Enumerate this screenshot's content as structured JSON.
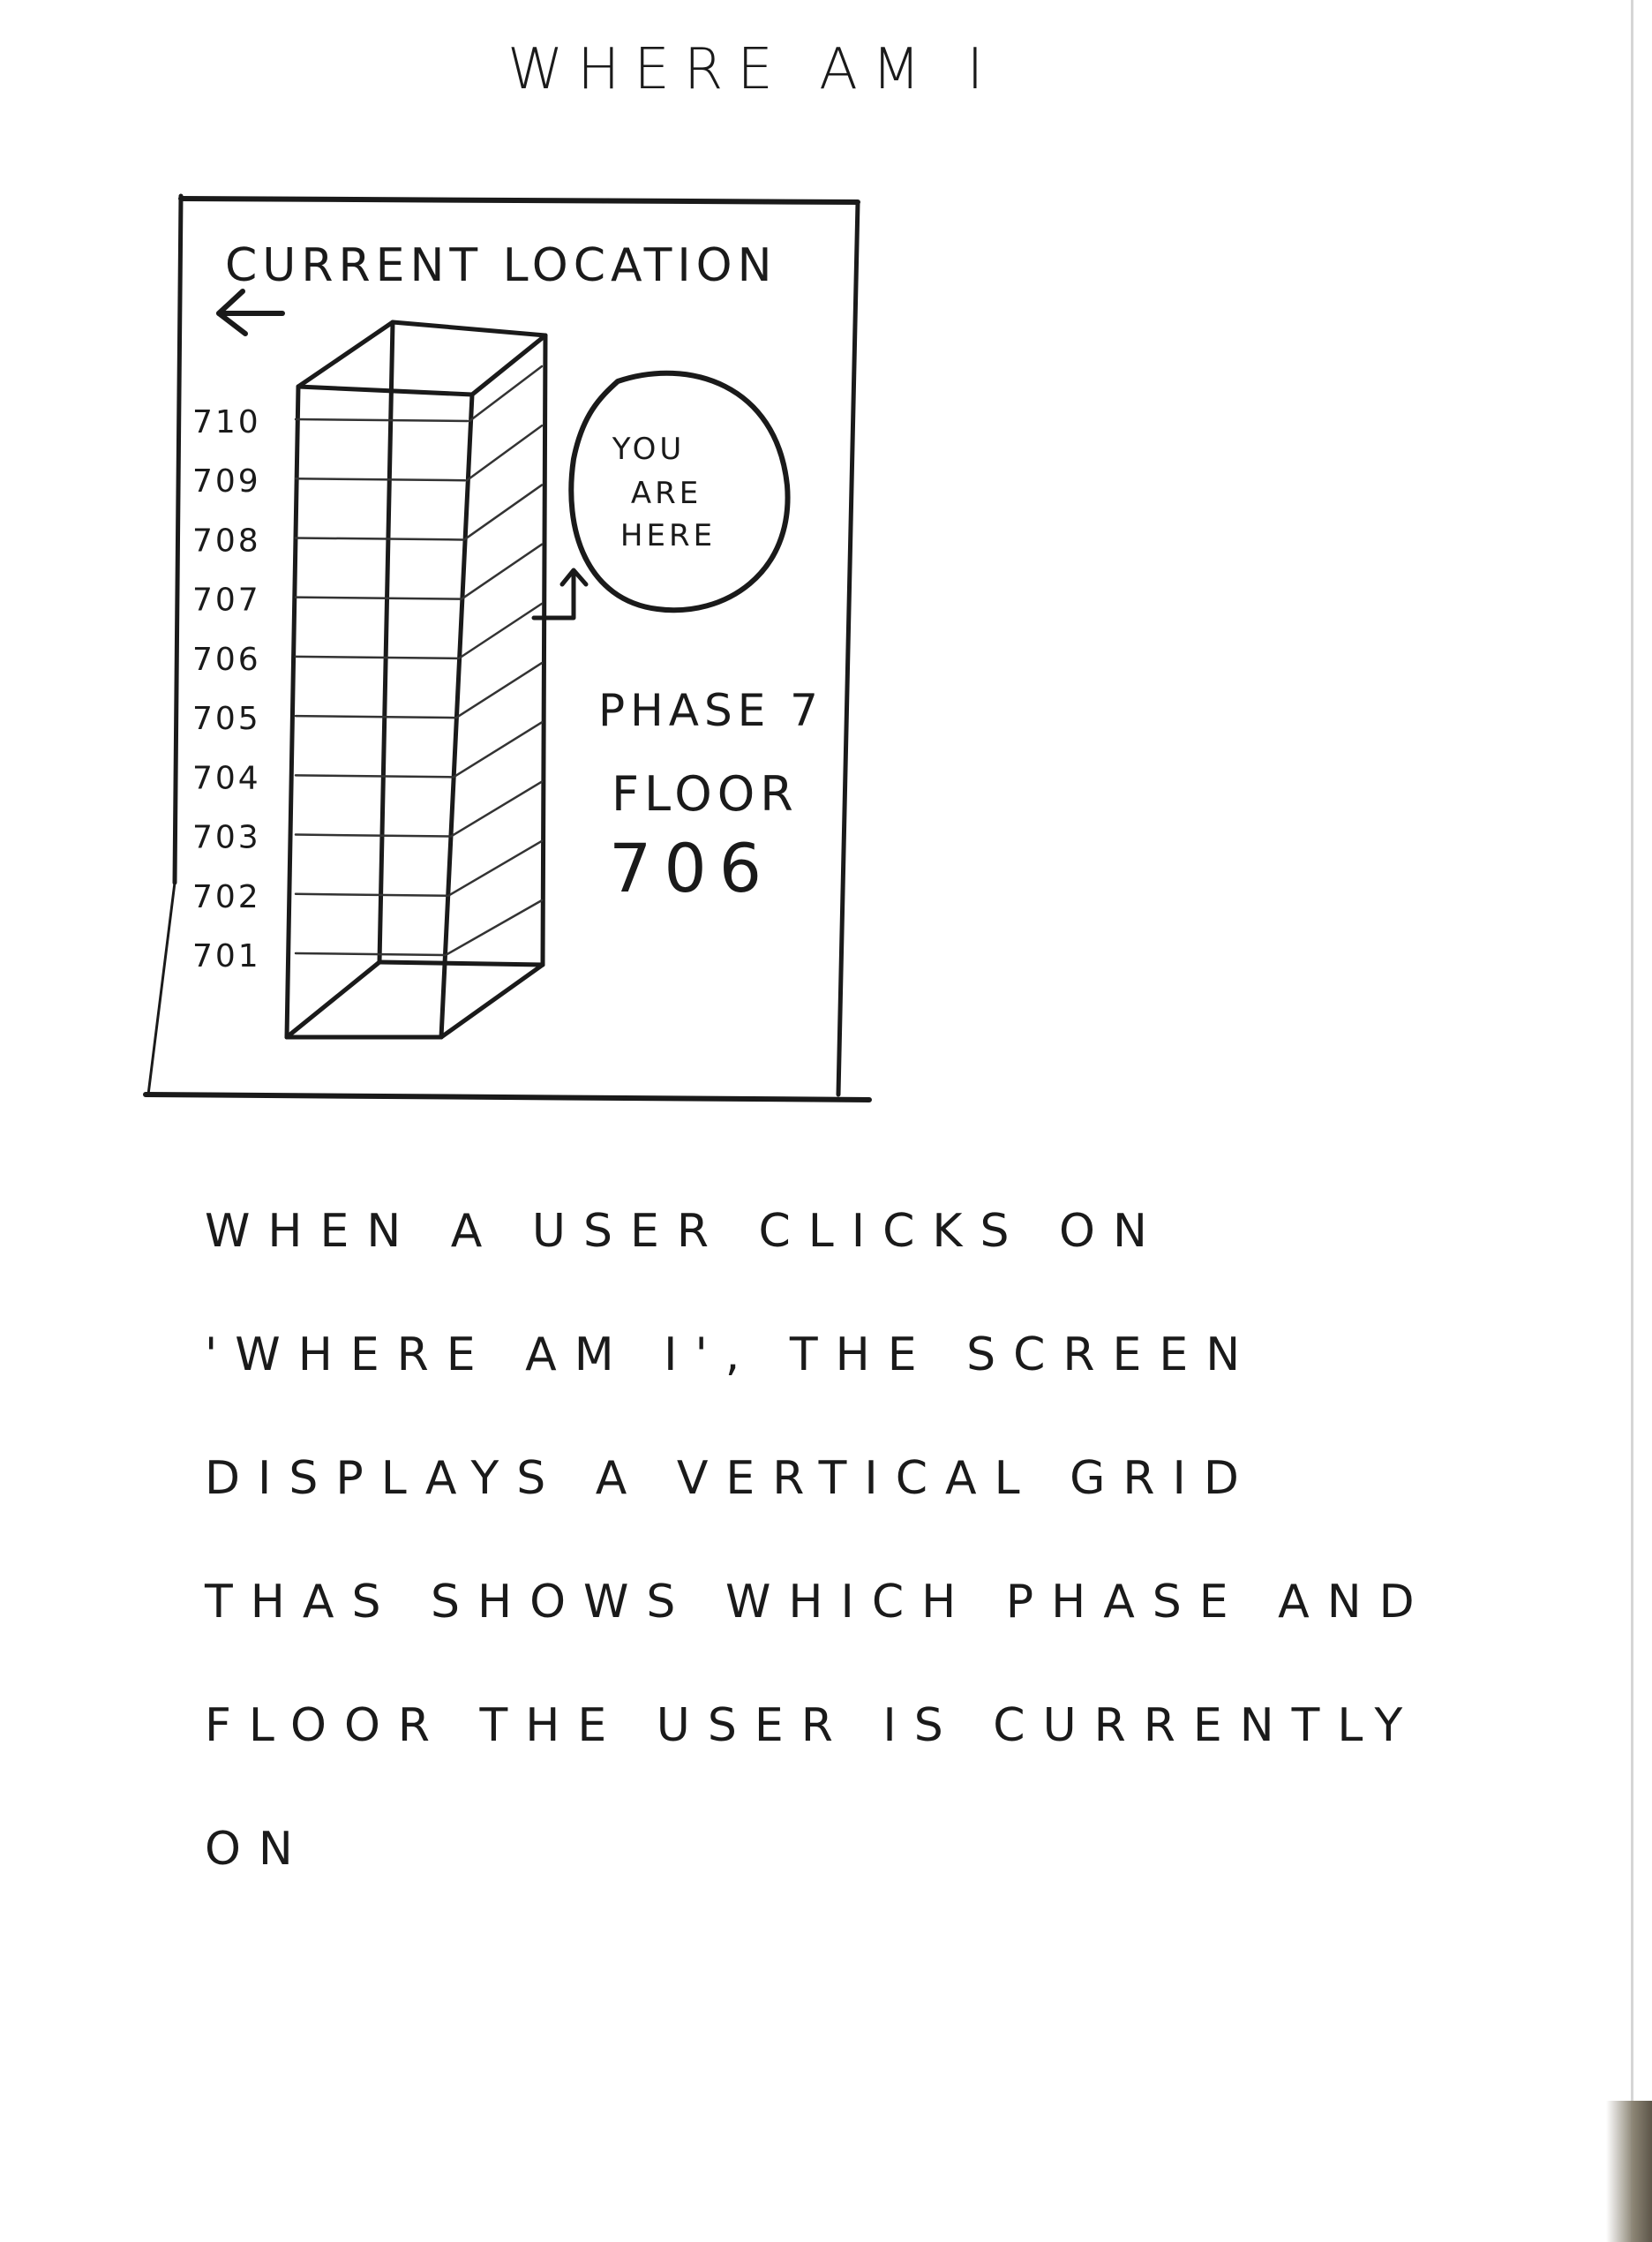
{
  "title": "WHERE AM I",
  "mockup": {
    "header_label": "CURRENT LOCATION",
    "back_icon": "arrow-left-icon",
    "floors": [
      "710",
      "709",
      "708",
      "707",
      "706",
      "705",
      "704",
      "703",
      "702",
      "701"
    ],
    "bubble_lines": [
      "YOU",
      "ARE",
      "HERE"
    ],
    "phase_label": "PHASE 7",
    "floor_label": "FLOOR",
    "floor_number": "706"
  },
  "description": {
    "lines": [
      "WHEN A USER CLICKS ON",
      "'WHERE AM I', THE SCREEN",
      "DISPLAYS A VERTICAL GRID",
      "THAS SHOWS WHICH PHASE AND",
      "FLOOR THE USER IS CURRENTLY",
      "ON"
    ]
  }
}
